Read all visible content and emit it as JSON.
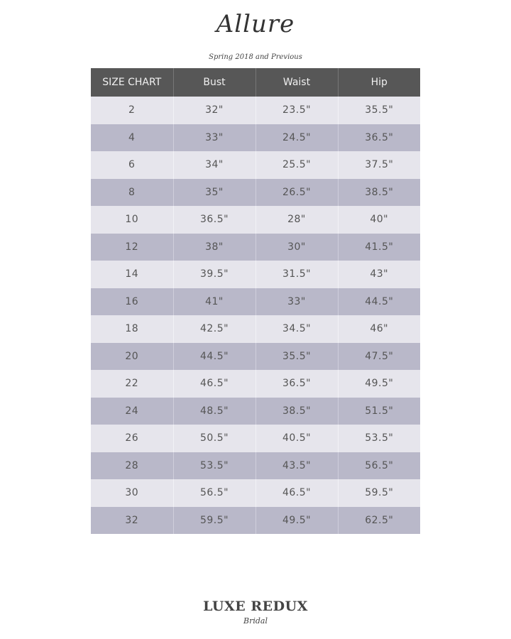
{
  "brand": "Allure",
  "subtitle": "Spring 2018 and Previous",
  "table": {
    "headers": [
      "SIZE CHART",
      "Bust",
      "Waist",
      "Hip"
    ],
    "rows": [
      [
        "2",
        "32\"",
        "23.5\"",
        "35.5\""
      ],
      [
        "4",
        "33\"",
        "24.5\"",
        "36.5\""
      ],
      [
        "6",
        "34\"",
        "25.5\"",
        "37.5\""
      ],
      [
        "8",
        "35\"",
        "26.5\"",
        "38.5\""
      ],
      [
        "10",
        "36.5\"",
        "28\"",
        "40\""
      ],
      [
        "12",
        "38\"",
        "30\"",
        "41.5\""
      ],
      [
        "14",
        "39.5\"",
        "31.5\"",
        "43\""
      ],
      [
        "16",
        "41\"",
        "33\"",
        "44.5\""
      ],
      [
        "18",
        "42.5\"",
        "34.5\"",
        "46\""
      ],
      [
        "20",
        "44.5\"",
        "35.5\"",
        "47.5\""
      ],
      [
        "22",
        "46.5\"",
        "36.5\"",
        "49.5\""
      ],
      [
        "24",
        "48.5\"",
        "38.5\"",
        "51.5\""
      ],
      [
        "26",
        "50.5\"",
        "40.5\"",
        "53.5\""
      ],
      [
        "28",
        "53.5\"",
        "43.5\"",
        "56.5\""
      ],
      [
        "30",
        "56.5\"",
        "46.5\"",
        "59.5\""
      ],
      [
        "32",
        "59.5\"",
        "49.5\"",
        "62.5\""
      ]
    ]
  },
  "footer": {
    "logo_main": "LUXE REDUX",
    "logo_sub": "Bridal"
  },
  "colors": {
    "header": "#575757",
    "row_light": "#e6e5ec",
    "row_dark": "#b9b8c9"
  }
}
